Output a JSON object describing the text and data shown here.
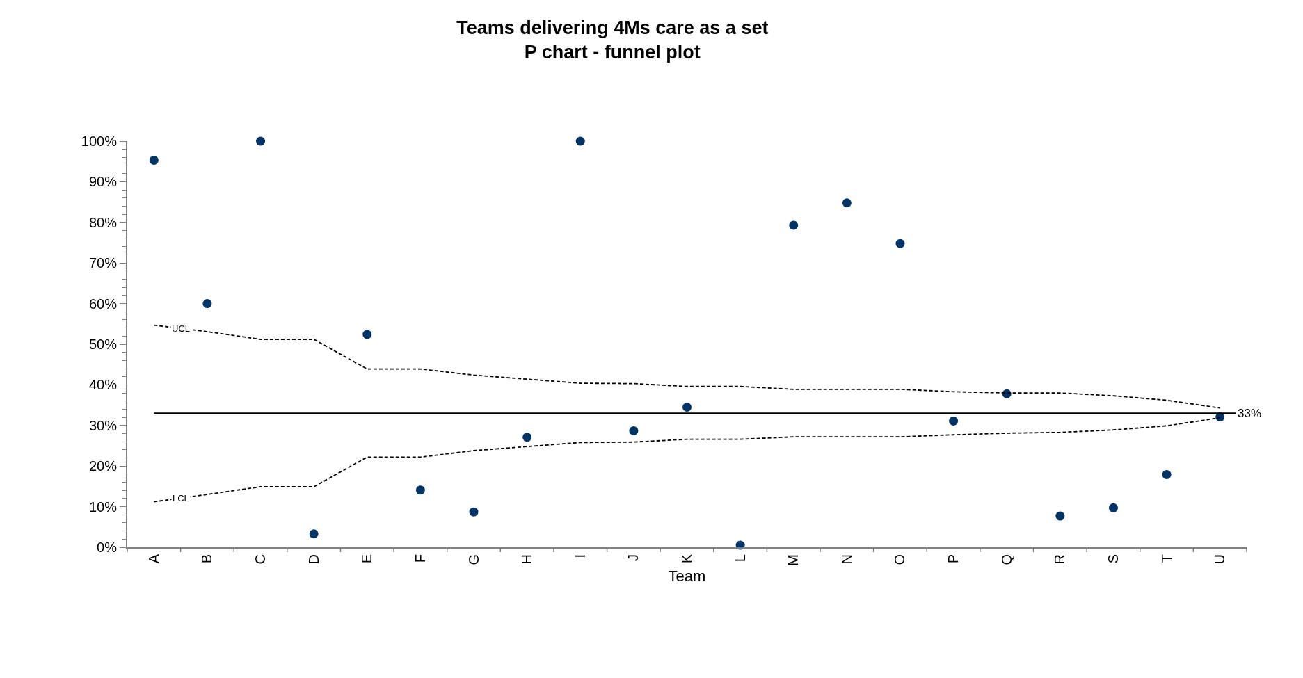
{
  "chart_data": {
    "type": "scatter",
    "title": "Teams delivering 4Ms care as a set",
    "subtitle": "P chart - funnel plot",
    "xlabel": "Team",
    "categories": [
      "A",
      "B",
      "C",
      "D",
      "E",
      "F",
      "G",
      "H",
      "I",
      "J",
      "K",
      "L",
      "M",
      "N",
      "O",
      "P",
      "Q",
      "R",
      "S",
      "T",
      "U"
    ],
    "series": [
      {
        "color": "#003366",
        "marker": "circle",
        "values": [
          95.3,
          60.0,
          100,
          3.3,
          52.4,
          14.1,
          8.7,
          27.1,
          100,
          28.7,
          34.5,
          0.5,
          79.3,
          84.8,
          74.8,
          31.1,
          37.8,
          7.7,
          9.7,
          17.9,
          32.1
        ]
      },
      {
        "type": "line",
        "name": "UCL",
        "color": "#000000",
        "line_style": "dashed",
        "marker": "none",
        "values": [
          54.7,
          53.1,
          51.2,
          51.2,
          43.9,
          43.9,
          42.4,
          41.4,
          40.4,
          40.3,
          39.6,
          39.6,
          38.9,
          38.9,
          38.9,
          38.3,
          38.0,
          38.0,
          37.3,
          36.2,
          34.3
        ]
      },
      {
        "type": "line",
        "name": "LCL",
        "color": "#000000",
        "line_style": "dashed",
        "marker": "none",
        "values": [
          11.2,
          13.0,
          14.9,
          14.9,
          22.2,
          22.2,
          23.8,
          24.8,
          25.8,
          25.9,
          26.6,
          26.6,
          27.2,
          27.2,
          27.2,
          27.7,
          28.1,
          28.3,
          28.9,
          29.9,
          31.9
        ]
      }
    ],
    "ref_lines": [
      {
        "axis": "y",
        "value": 33,
        "label": "33%",
        "color": "#000000",
        "line_style": "solid"
      }
    ],
    "ylim": [
      0,
      100
    ],
    "yticks": [
      {
        "value": 0,
        "label": "0%"
      },
      {
        "value": 10,
        "label": "10%"
      },
      {
        "value": 20,
        "label": "20%"
      },
      {
        "value": 30,
        "label": "30%"
      },
      {
        "value": 40,
        "label": "40%"
      },
      {
        "value": 50,
        "label": "50%"
      },
      {
        "value": 60,
        "label": "60%"
      },
      {
        "value": 70,
        "label": "70%"
      },
      {
        "value": 80,
        "label": "80%"
      },
      {
        "value": 90,
        "label": "90%"
      },
      {
        "value": 100,
        "label": "100%"
      }
    ],
    "legend": false
  }
}
